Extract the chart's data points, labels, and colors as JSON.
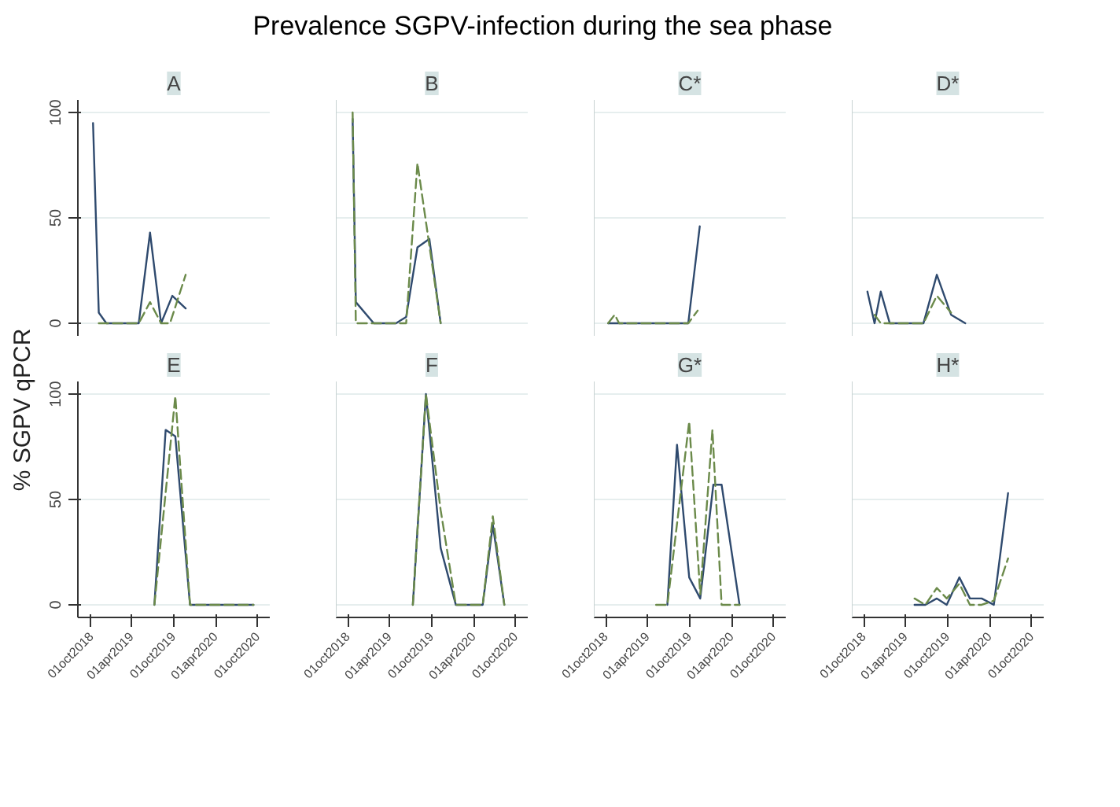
{
  "chart_data": [
    {
      "type": "line",
      "title": "Prevalence SGPV-infection during the sea phase",
      "subtitle": "A",
      "ylabel": "% SGPV qPCR",
      "xlim": [
        "2018-08-10",
        "2020-11-22"
      ],
      "ylim": [
        -6,
        106
      ],
      "yticks": [
        0,
        50,
        100
      ],
      "grid": "y",
      "tick_labels": "y",
      "series": [
        {
          "color": "#2f4a6e",
          "line_style": "solid",
          "x": [
            "2018-10-15",
            "2018-11-09",
            "2018-12-12",
            "2019-05-02",
            "2019-06-20",
            "2019-08-07",
            "2019-09-25",
            "2019-11-22"
          ],
          "values": [
            95,
            5,
            0,
            0,
            43,
            0,
            13,
            7
          ]
        },
        {
          "color": "#6b8a4a",
          "line_style": "dashed",
          "x": [
            "2018-11-09",
            "2018-12-12",
            "2019-05-02",
            "2019-06-20",
            "2019-08-07",
            "2019-09-15",
            "2019-11-22"
          ],
          "values": [
            0,
            0,
            0,
            10,
            0,
            0,
            23
          ]
        }
      ]
    },
    {
      "type": "line",
      "subtitle": "B",
      "xlim": [
        "2018-08-10",
        "2020-11-22"
      ],
      "ylim": [
        -6,
        106
      ],
      "yticks": [
        0,
        50,
        100
      ],
      "grid": "y",
      "tick_labels": false,
      "series": [
        {
          "color": "#2f4a6e",
          "line_style": "solid",
          "x": [
            "2018-10-22",
            "2018-11-05",
            "2019-01-22",
            "2019-04-29",
            "2019-06-12",
            "2019-07-31",
            "2019-09-21",
            "2019-11-09"
          ],
          "values": [
            97,
            10,
            0,
            0,
            3,
            36,
            40,
            0
          ]
        },
        {
          "color": "#6b8a4a",
          "line_style": "dashed",
          "x": [
            "2018-10-22",
            "2018-11-05",
            "2019-01-22",
            "2019-04-29",
            "2019-06-12",
            "2019-07-31",
            "2019-11-09"
          ],
          "values": [
            100,
            0,
            0,
            0,
            0,
            76,
            0
          ]
        }
      ]
    },
    {
      "type": "line",
      "subtitle": "C*",
      "xlim": [
        "2018-08-10",
        "2020-11-22"
      ],
      "ylim": [
        -6,
        106
      ],
      "yticks": [
        0,
        50,
        100
      ],
      "grid": "y",
      "tick_labels": false,
      "series": [
        {
          "color": "#2f4a6e",
          "line_style": "solid",
          "x": [
            "2018-10-11",
            "2018-11-28",
            "2019-09-25",
            "2019-11-14"
          ],
          "values": [
            0,
            0,
            0,
            46
          ]
        },
        {
          "color": "#6b8a4a",
          "line_style": "dashed",
          "x": [
            "2018-10-11",
            "2018-11-09",
            "2018-11-28",
            "2019-09-25",
            "2019-11-05"
          ],
          "values": [
            0,
            4,
            0,
            0,
            6
          ]
        }
      ]
    },
    {
      "type": "line",
      "subtitle": "D*",
      "xlim": [
        "2018-08-10",
        "2020-11-22"
      ],
      "ylim": [
        -6,
        106
      ],
      "yticks": [
        0,
        50,
        100
      ],
      "grid": "y",
      "tick_labels": false,
      "series": [
        {
          "color": "#2f4a6e",
          "line_style": "solid",
          "x": [
            "2018-10-17",
            "2018-11-17",
            "2018-12-14",
            "2019-01-22",
            "2019-06-18",
            "2019-08-15",
            "2019-10-16",
            "2019-12-17"
          ],
          "values": [
            15,
            0,
            15,
            0,
            0,
            23,
            4,
            0
          ]
        },
        {
          "color": "#6b8a4a",
          "line_style": "dashed",
          "x": [
            "2018-11-17",
            "2018-12-14",
            "2019-01-22",
            "2019-06-18",
            "2019-08-15",
            "2019-10-16"
          ],
          "values": [
            4,
            0,
            0,
            0,
            13,
            5
          ]
        }
      ]
    },
    {
      "type": "line",
      "subtitle": "E",
      "xlim": [
        "2018-08-10",
        "2020-11-22"
      ],
      "ylim": [
        -6,
        106
      ],
      "yticks": [
        0,
        50,
        100
      ],
      "grid": "y",
      "xticks": [
        {
          "value": "2018-10-01",
          "label": "01oct2018"
        },
        {
          "value": "2019-04-01",
          "label": "01apr2019"
        },
        {
          "value": "2019-10-01",
          "label": "01oct2019"
        },
        {
          "value": "2020-04-01",
          "label": "01apr2020"
        },
        {
          "value": "2020-10-01",
          "label": "01oct2020"
        }
      ],
      "series": [
        {
          "color": "#2f4a6e",
          "line_style": "solid",
          "x": [
            "2019-07-09",
            "2019-08-27",
            "2019-10-08",
            "2019-12-11",
            "2020-09-12"
          ],
          "values": [
            0,
            83,
            80,
            0,
            0
          ]
        },
        {
          "color": "#6b8a4a",
          "line_style": "dashed",
          "x": [
            "2019-07-09",
            "2019-10-08",
            "2019-12-11",
            "2020-09-12"
          ],
          "values": [
            0,
            99,
            0,
            0
          ]
        }
      ]
    },
    {
      "type": "line",
      "subtitle": "F",
      "xlim": [
        "2018-08-10",
        "2020-11-22"
      ],
      "ylim": [
        -6,
        106
      ],
      "yticks": [
        0,
        50,
        100
      ],
      "grid": "y",
      "tick_labels": "x",
      "xticks": [
        {
          "value": "2018-10-01",
          "label": "01oct2018"
        },
        {
          "value": "2019-04-01",
          "label": "01apr2019"
        },
        {
          "value": "2019-10-01",
          "label": "01oct2019"
        },
        {
          "value": "2020-04-01",
          "label": "01apr2020"
        },
        {
          "value": "2020-10-01",
          "label": "01oct2020"
        }
      ],
      "series": [
        {
          "color": "#2f4a6e",
          "line_style": "solid",
          "x": [
            "2019-07-11",
            "2019-09-06",
            "2019-11-09",
            "2020-01-14",
            "2020-05-10",
            "2020-06-23",
            "2020-08-12"
          ],
          "values": [
            0,
            100,
            27,
            0,
            0,
            38,
            0
          ]
        },
        {
          "color": "#6b8a4a",
          "line_style": "dashed",
          "x": [
            "2019-07-11",
            "2019-09-06",
            "2019-11-09",
            "2020-01-14",
            "2020-05-10",
            "2020-06-23",
            "2020-08-12"
          ],
          "values": [
            0,
            100,
            45,
            0,
            0,
            42,
            0
          ]
        }
      ]
    },
    {
      "type": "line",
      "subtitle": "G*",
      "xlim": [
        "2018-08-10",
        "2020-11-22"
      ],
      "ylim": [
        -6,
        106
      ],
      "yticks": [
        0,
        50,
        100
      ],
      "grid": "y",
      "tick_labels": "x",
      "xticks": [
        {
          "value": "2018-10-01",
          "label": "01oct2018"
        },
        {
          "value": "2019-04-01",
          "label": "01apr2019"
        },
        {
          "value": "2019-10-01",
          "label": "01oct2019"
        },
        {
          "value": "2020-04-01",
          "label": "01apr2020"
        },
        {
          "value": "2020-10-01",
          "label": "01oct2020"
        }
      ],
      "series": [
        {
          "color": "#2f4a6e",
          "line_style": "solid",
          "x": [
            "2019-06-26",
            "2019-08-07",
            "2019-09-29",
            "2019-11-16",
            "2020-01-12",
            "2020-02-17",
            "2020-05-05"
          ],
          "values": [
            0,
            76,
            13,
            3,
            57,
            57,
            0
          ]
        },
        {
          "color": "#6b8a4a",
          "line_style": "dashed",
          "x": [
            "2019-05-08",
            "2019-06-26",
            "2019-09-29",
            "2019-11-16",
            "2020-01-08",
            "2020-02-17",
            "2020-05-05"
          ],
          "values": [
            0,
            0,
            87,
            5,
            83,
            0,
            0
          ]
        }
      ]
    },
    {
      "type": "line",
      "subtitle": "H*",
      "xlim": [
        "2018-08-10",
        "2020-11-22"
      ],
      "ylim": [
        -6,
        106
      ],
      "yticks": [
        0,
        50,
        100
      ],
      "grid": "y",
      "tick_labels": "x",
      "xticks": [
        {
          "value": "2018-10-01",
          "label": "01oct2018"
        },
        {
          "value": "2019-04-01",
          "label": "01apr2019"
        },
        {
          "value": "2019-10-01",
          "label": "01oct2019"
        },
        {
          "value": "2020-04-01",
          "label": "01apr2020"
        },
        {
          "value": "2020-10-01",
          "label": "01oct2020"
        }
      ],
      "series": [
        {
          "color": "#2f4a6e",
          "line_style": "solid",
          "x": [
            "2019-05-10",
            "2019-06-26",
            "2019-08-15",
            "2019-09-27",
            "2019-11-21",
            "2020-01-06",
            "2020-02-26",
            "2020-04-19",
            "2020-06-20"
          ],
          "values": [
            0,
            0,
            3,
            0,
            13,
            3,
            3,
            0,
            53
          ]
        },
        {
          "color": "#6b8a4a",
          "line_style": "dashed",
          "x": [
            "2019-05-10",
            "2019-06-26",
            "2019-08-15",
            "2019-09-27",
            "2019-11-21",
            "2020-01-06",
            "2020-02-26",
            "2020-04-19",
            "2020-06-20"
          ],
          "values": [
            3,
            0,
            8,
            3,
            10,
            0,
            0,
            2,
            22
          ]
        }
      ]
    }
  ]
}
